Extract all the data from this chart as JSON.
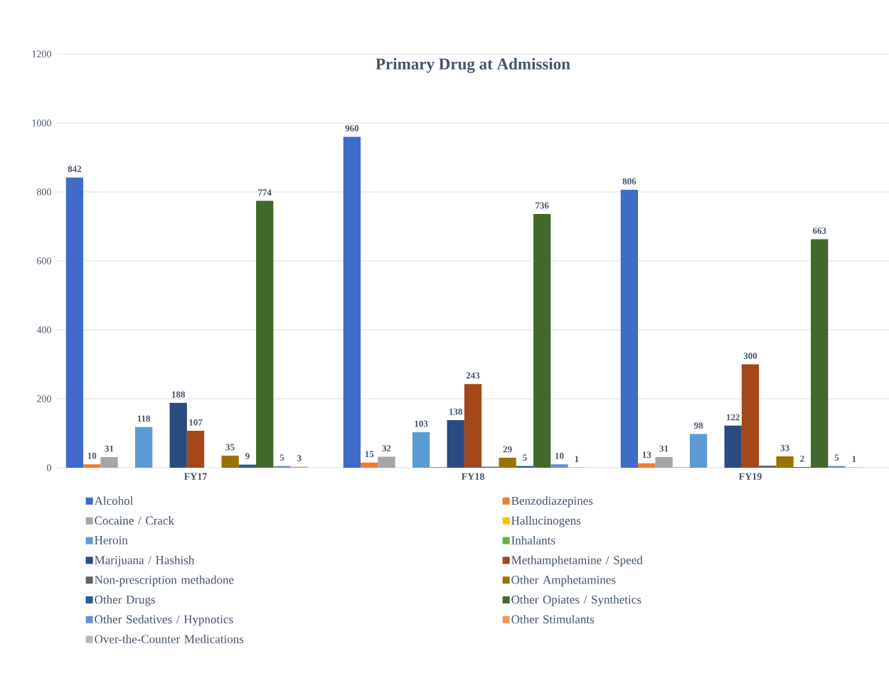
{
  "chart_data": {
    "type": "bar",
    "title": "Primary Drug at Admission",
    "categories": [
      "FY17",
      "FY18",
      "FY19"
    ],
    "ylim": [
      0,
      1200
    ],
    "yticks": [
      0,
      200,
      400,
      600,
      800,
      1000,
      1200
    ],
    "grid": "y",
    "legend": "bottom",
    "series": [
      {
        "name": "Alcohol",
        "color": "#3f6cc8",
        "values": [
          842,
          960,
          806
        ],
        "value_labels": [
          "842",
          "960",
          "806"
        ]
      },
      {
        "name": "Benzodiazepines",
        "color": "#ed7d31",
        "values": [
          10,
          15,
          13
        ],
        "value_labels": [
          "10",
          "15",
          "13"
        ]
      },
      {
        "name": "Cocaine / Crack",
        "color": "#a5a5a5",
        "values": [
          31,
          32,
          31
        ],
        "value_labels": [
          "31",
          "32",
          "31"
        ]
      },
      {
        "name": "Hallucinogens",
        "color": "#ffc000",
        "values": [
          null,
          null,
          2
        ],
        "value_labels": [
          null,
          null,
          null
        ]
      },
      {
        "name": "Heroin",
        "color": "#5b9bd5",
        "values": [
          118,
          103,
          98
        ],
        "value_labels": [
          "118",
          "103",
          "98"
        ]
      },
      {
        "name": "Inhalants",
        "color": "#70ad47",
        "values": [
          null,
          2,
          null
        ],
        "value_labels": [
          null,
          null,
          null
        ]
      },
      {
        "name": "Marijuana / Hashish",
        "color": "#2a4a80",
        "values": [
          188,
          138,
          122
        ],
        "value_labels": [
          "188",
          "138",
          "122"
        ]
      },
      {
        "name": "Methamphetamine / Speed",
        "color": "#a4481a",
        "values": [
          107,
          243,
          300
        ],
        "value_labels": [
          "107",
          "243",
          "300"
        ]
      },
      {
        "name": "Non-prescription methadone",
        "color": "#636363",
        "values": [
          null,
          3,
          6
        ],
        "value_labels": [
          null,
          null,
          null
        ]
      },
      {
        "name": "Other Amphetamines",
        "color": "#997300",
        "values": [
          35,
          29,
          33
        ],
        "value_labels": [
          "35",
          "29",
          "33"
        ]
      },
      {
        "name": "Other Drugs",
        "color": "#255e91",
        "values": [
          9,
          5,
          2
        ],
        "value_labels": [
          "9",
          "5",
          "2"
        ]
      },
      {
        "name": "Other Opiates / Synthetics",
        "color": "#43682b",
        "values": [
          774,
          736,
          663
        ],
        "value_labels": [
          "774",
          "736",
          "663"
        ]
      },
      {
        "name": "Other Sedatives / Hypnotics",
        "color": "#698ed0",
        "values": [
          5,
          10,
          5
        ],
        "value_labels": [
          "5",
          "10",
          "5"
        ]
      },
      {
        "name": "Other Stimulants",
        "color": "#f1975a",
        "values": [
          3,
          1,
          1
        ],
        "value_labels": [
          "3",
          "1",
          "1"
        ]
      },
      {
        "name": "Over-the-Counter Medications",
        "color": "#b7b7b7",
        "values": [
          null,
          null,
          null
        ],
        "value_labels": [
          null,
          null,
          null
        ]
      }
    ]
  }
}
